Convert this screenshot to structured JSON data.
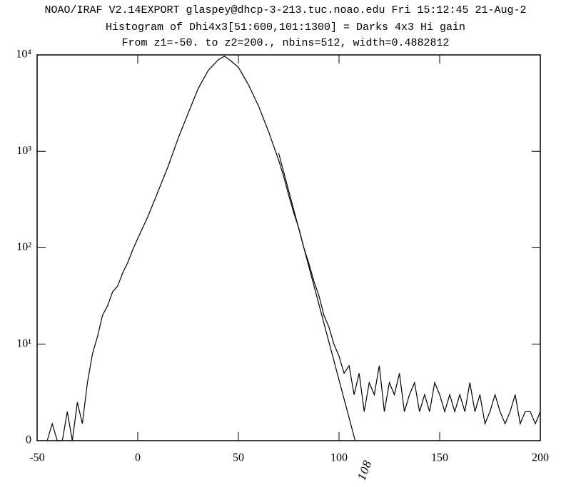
{
  "chart_data": {
    "type": "line",
    "title": "NOAO/IRAF V2.14EXPORT glaspey@dhcp-3-213.tuc.noao.edu Fri 15:12:45 21-Aug-2",
    "subtitle": "Histogram of Dhi4x3[51:600,101:1300] = Darks 4x3 Hi gain",
    "subtitle2": "From z1=-50. to z2=200., nbins=512, width=0.4882812",
    "annotation": "108",
    "xlim": [
      -50,
      200
    ],
    "xticks": [
      -50,
      0,
      50,
      100,
      150,
      200
    ],
    "ylim": [
      1,
      10000
    ],
    "log_y": true,
    "grid": false,
    "yticks": [
      {
        "value": 1,
        "label": "0"
      },
      {
        "value": 10,
        "label": "10¹"
      },
      {
        "value": 100,
        "label": "10²"
      },
      {
        "value": 1000,
        "label": "10³"
      },
      {
        "value": 10000,
        "label": "10⁴"
      }
    ],
    "series": [
      {
        "color": "#000000",
        "x": [
          -45,
          -42.5,
          -40,
          -37.5,
          -35,
          -32.5,
          -30,
          -27.5,
          -25,
          -22.5,
          -20,
          -17.5,
          -15,
          -12.5,
          -10,
          -7.5,
          -5,
          -2.5,
          0,
          5,
          10,
          15,
          20,
          25,
          30,
          35,
          40,
          43,
          45,
          50,
          55,
          60,
          65,
          70,
          72.5,
          75,
          77.5,
          80,
          82.5,
          85,
          87.5,
          90,
          92.5,
          95,
          97.5,
          100,
          102.5,
          105,
          107.5,
          110,
          112.5,
          115,
          117.5,
          120,
          122.5,
          125,
          127.5,
          130,
          132.5,
          135,
          137.5,
          140,
          142.5,
          145,
          147.5,
          150,
          152.5,
          155,
          157.5,
          160,
          162.5,
          165,
          167.5,
          170,
          172.5,
          175,
          177.5,
          180,
          182.5,
          185,
          187.5,
          190,
          192.5,
          195,
          197.5,
          200
        ],
        "values": [
          1,
          1.5,
          1,
          1,
          2,
          1,
          2.5,
          1.5,
          4,
          8,
          12,
          20,
          25,
          35,
          40,
          55,
          70,
          95,
          125,
          210,
          380,
          690,
          1350,
          2470,
          4470,
          6900,
          8900,
          9700,
          9100,
          7450,
          4900,
          2950,
          1600,
          810,
          550,
          350,
          230,
          160,
          100,
          69,
          45,
          32,
          20,
          15,
          10,
          7.5,
          5,
          6,
          3,
          5,
          2,
          4,
          3,
          6,
          2,
          4,
          3,
          5,
          2,
          3,
          4,
          2,
          3,
          2,
          4,
          3,
          2,
          3,
          2,
          3,
          2,
          4,
          2,
          3,
          1.5,
          2,
          3,
          2,
          1.5,
          2,
          3,
          1.5,
          2,
          2,
          1.5,
          2
        ]
      },
      {
        "color": "#000000",
        "x": [
          70,
          108
        ],
        "values": [
          960,
          1
        ]
      }
    ]
  }
}
